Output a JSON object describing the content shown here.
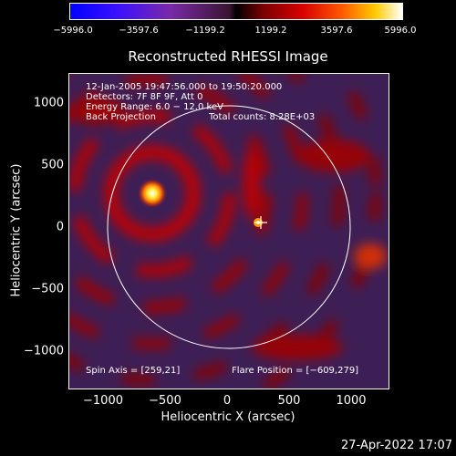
{
  "colorbar": {
    "ticks": [
      "−5996.0",
      "−3597.6",
      "−1199.2",
      "1199.2",
      "3597.6",
      "5996.0"
    ]
  },
  "title": "Reconstructed RHESSI Image",
  "info": {
    "time": "12-Jan-2005 19:47:56.000 to 19:50:20.000",
    "detectors": "Detectors: 7F 8F 9F, Att 0",
    "energy": "Energy Range: 6.0 − 12.0 keV",
    "method": "Back Projection",
    "counts": "Total counts: 8.28E+03",
    "spin_axis": "Spin Axis = [259,21]",
    "flare_position": "Flare Position = [−609,279]"
  },
  "axes": {
    "xlabel": "Heliocentric X (arcsec)",
    "ylabel": "Heliocentric Y (arcsec)",
    "xticks": [
      "−1000",
      "−500",
      "0",
      "500",
      "1000"
    ],
    "yticks": [
      "1000",
      "500",
      "0",
      "−500",
      "−1000"
    ]
  },
  "footer": {
    "date": "27-Apr-2022 17:07"
  }
}
